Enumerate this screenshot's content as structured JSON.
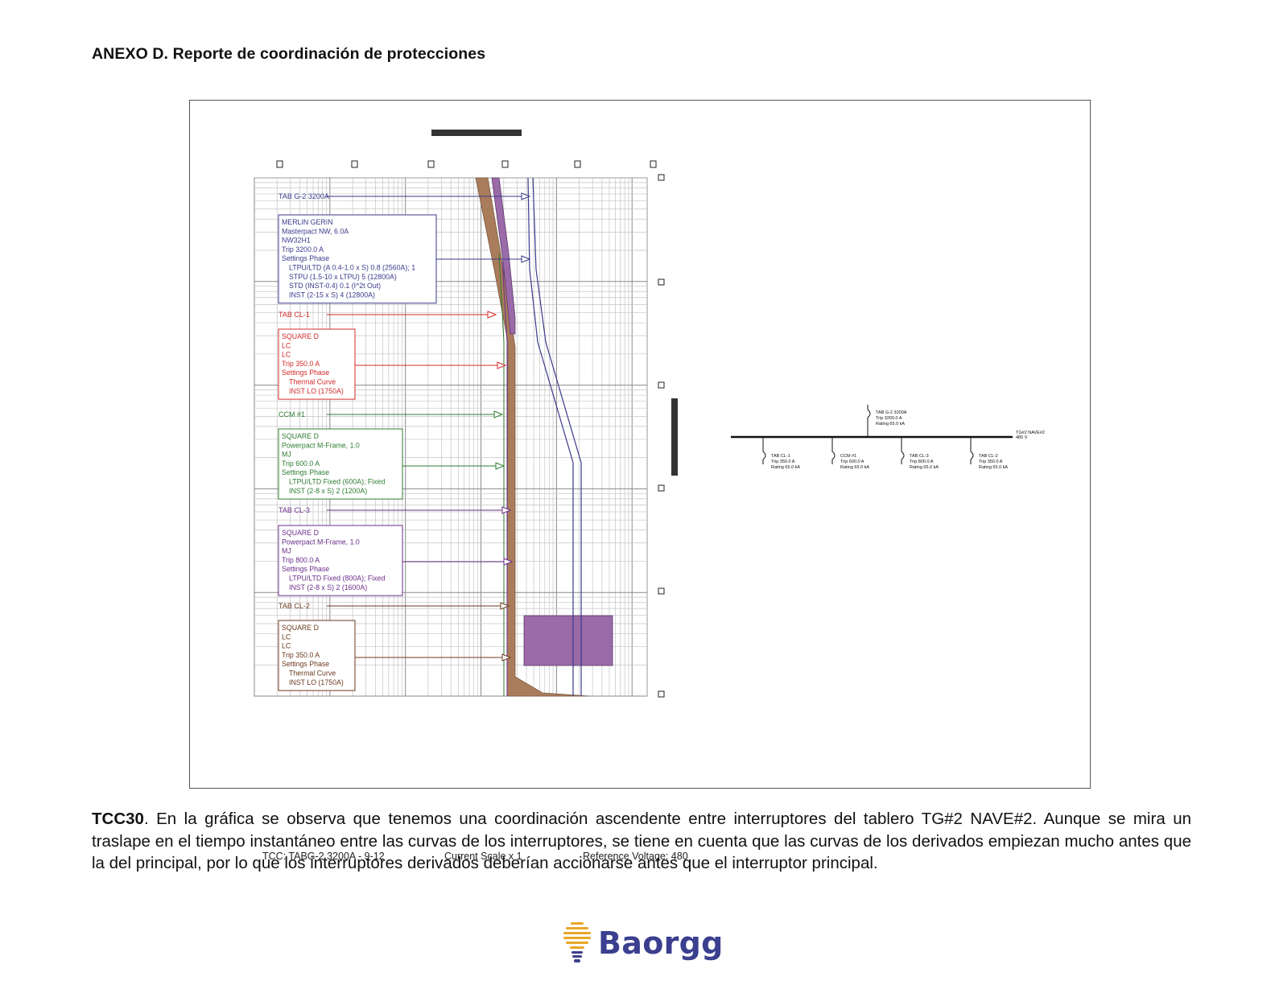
{
  "page": {
    "heading": "ANEXO D. Reporte de coordinación de protecciones"
  },
  "tcc": {
    "labels": {
      "tab_g2": "TAB G-2 3200A",
      "tab_cl1": "TAB CL-1",
      "ccm1": "CCM #1",
      "tab_cl3": "TAB CL-3",
      "tab_cl2": "TAB CL-2"
    },
    "boxes": {
      "main": [
        "MERLIN GERIN",
        "Masterpact NW, 6.0A",
        "NW32H1",
        "Trip 3200.0 A",
        "Settings Phase",
        "LTPU/LTD (A 0.4-1.0 x S) 0.8 (2560A); 1",
        "STPU (1.5-10 x LTPU) 5 (12800A)",
        "STD (INST-0.4) 0.1 (I^2t Out)",
        "INST (2-15 x S) 4 (12800A)"
      ],
      "cl1": [
        "SQUARE D",
        "LC",
        "LC",
        "Trip 350.0 A",
        "Settings Phase",
        "Thermal Curve",
        "INST LO (1750A)"
      ],
      "ccm1": [
        "SQUARE D",
        "Powerpact M-Frame, 1.0",
        "MJ",
        "Trip 600.0 A",
        "Settings Phase",
        "LTPU/LTD Fixed (600A); Fixed",
        "INST (2-8 x S) 2 (1200A)"
      ],
      "cl3": [
        "SQUARE D",
        "Powerpact M-Frame, 1.0",
        "MJ",
        "Trip 800.0 A",
        "Settings Phase",
        "LTPU/LTD Fixed (800A); Fixed",
        "INST (2-8 x S) 2 (1600A)"
      ],
      "cl2": [
        "SQUARE D",
        "LC",
        "LC",
        "Trip 350.0 A",
        "Settings Phase",
        "Thermal Curve",
        "INST LO (1750A)"
      ]
    },
    "colors": {
      "main": "#3a3a8c",
      "cl1": "#d42a2a",
      "ccm1": "#2e7d32",
      "cl3": "#6a2d8a",
      "cl2": "#6b3a1e",
      "band_brown": "#a97c5c",
      "band_purple": "#9b6aa8"
    },
    "footer": {
      "tcc": "TCC:  TABG-2 3200A - 9-12",
      "scale": "Current Scale  x 1",
      "voltage": "Reference Voltage: 480"
    }
  },
  "oneline": {
    "bus": [
      "TG#2 NAVE#2",
      "480 V"
    ],
    "main_breaker": [
      "TAB G-2 3200A",
      "Trip 3200.0 A",
      "Rating 65.0 kA"
    ],
    "feeders": [
      [
        "TAB CL-1",
        "Trip 350.0 A",
        "Rating 65.0 kA"
      ],
      [
        "CCM #1",
        "Trip 600.0 A",
        "Rating 65.0 kA"
      ],
      [
        "TAB CL-3",
        "Trip 800.0 A",
        "Rating 65.0 kA"
      ],
      [
        "TAB CL-2",
        "Trip 350.0 A",
        "Rating 65.0 kA"
      ]
    ]
  },
  "caption": {
    "lead": "TCC30",
    "body": ". En la gráfica se observa que tenemos una coordinación ascendente entre interruptores del tablero TG#2 NAVE#2. Aunque se mira un traslape en el tiempo instantáneo entre las curvas de los interruptores, se tiene en cuenta que las curvas de los derivados empiezan mucho antes que la del principal, por lo que los interruptores derivados deberían accionarse antes que el interruptor principal."
  },
  "logo": {
    "text": "Baorgg",
    "icon": "lightbulb-icon"
  }
}
